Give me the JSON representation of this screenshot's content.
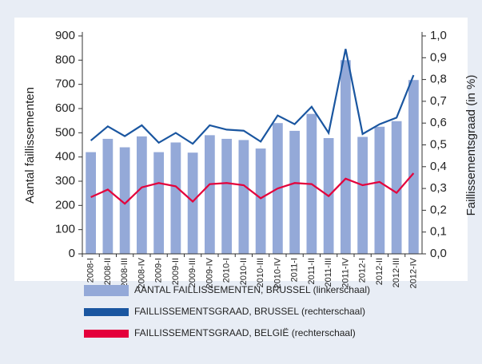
{
  "chart_data": {
    "type": "bar-line",
    "categories": [
      "2008-I",
      "2008-II",
      "2008-III",
      "2008-IV",
      "2009-I",
      "2009-II",
      "2009-III",
      "2009-IV",
      "2010-I",
      "2010-II",
      "2010-III",
      "2010-IV",
      "2011-I",
      "2011-II",
      "2011-III",
      "2011-IV",
      "2012-I",
      "2012-II",
      "2012-III",
      "2012-IV"
    ],
    "series": [
      {
        "name": "AANTAL FAILLISSEMENTEN, BRUSSEL (linkerschaal)",
        "type": "bar",
        "axis": "y",
        "color": "#94a9d8",
        "values": [
          420,
          475,
          440,
          485,
          420,
          460,
          418,
          490,
          475,
          470,
          435,
          540,
          508,
          578,
          478,
          800,
          483,
          525,
          548,
          718
        ]
      },
      {
        "name": "FAILLISSEMENTSGRAAD, BRUSSEL (rechterschaal)",
        "type": "line",
        "axis": "y2",
        "color": "#1a56a0",
        "values": [
          0.52,
          0.585,
          0.54,
          0.59,
          0.51,
          0.555,
          0.505,
          0.59,
          0.57,
          0.565,
          0.515,
          0.635,
          0.595,
          0.675,
          0.555,
          0.94,
          0.55,
          0.595,
          0.625,
          0.82
        ]
      },
      {
        "name": "FAILLISSEMENTSGRAAD, BELGIË (rechterschaal)",
        "type": "line",
        "axis": "y2",
        "color": "#e4003b",
        "values": [
          0.26,
          0.295,
          0.23,
          0.305,
          0.325,
          0.31,
          0.24,
          0.32,
          0.325,
          0.315,
          0.255,
          0.3,
          0.325,
          0.32,
          0.265,
          0.345,
          0.315,
          0.33,
          0.28,
          0.37
        ]
      }
    ],
    "ylabel": "Aantal faillissementen",
    "y2label": "Faillissementsgraad (in %)",
    "ylim": [
      0,
      900
    ],
    "yticks": [
      0,
      100,
      200,
      300,
      400,
      500,
      600,
      700,
      800,
      900
    ],
    "y2lim": [
      0,
      1
    ],
    "y2ticks": [
      {
        "value": 0,
        "label": "0,0"
      },
      {
        "value": 0.1,
        "label": "0,1"
      },
      {
        "value": 0.2,
        "label": "0,2"
      },
      {
        "value": 0.3,
        "label": "0,3"
      },
      {
        "value": 0.4,
        "label": "0,4"
      },
      {
        "value": 0.5,
        "label": "0,5"
      },
      {
        "value": 0.6,
        "label": "0,6"
      },
      {
        "value": 0.7,
        "label": "0,7"
      },
      {
        "value": 0.8,
        "label": "0,8"
      },
      {
        "value": 0.9,
        "label": "0,9"
      },
      {
        "value": 1,
        "label": "1,0"
      }
    ],
    "grid": false
  }
}
